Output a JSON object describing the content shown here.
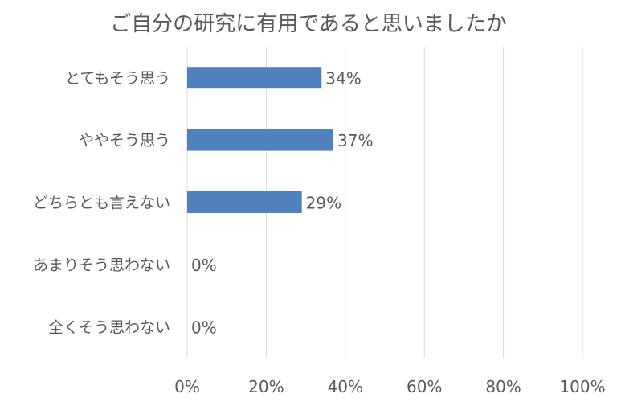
{
  "chart_data": {
    "type": "bar",
    "orientation": "horizontal",
    "title": "ご自分の研究に有用であると思いましたか",
    "categories": [
      "とてもそう思う",
      "ややそう思う",
      "どちらとも言えない",
      "あまりそう思わない",
      "全くそう思わない"
    ],
    "values": [
      34,
      37,
      29,
      0,
      0
    ],
    "data_labels": [
      "34%",
      "37%",
      "29%",
      "0%",
      "0%"
    ],
    "xlim": [
      0,
      100
    ],
    "xticks": [
      0,
      20,
      40,
      60,
      80,
      100
    ],
    "xtick_labels": [
      "0%",
      "20%",
      "40%",
      "60%",
      "80%",
      "100%"
    ],
    "xlabel": "",
    "ylabel": "",
    "grid": true,
    "legend": "none",
    "colors": {
      "bar": "#4f81bd",
      "grid": "#d9d9d9",
      "text": "#595959"
    }
  }
}
